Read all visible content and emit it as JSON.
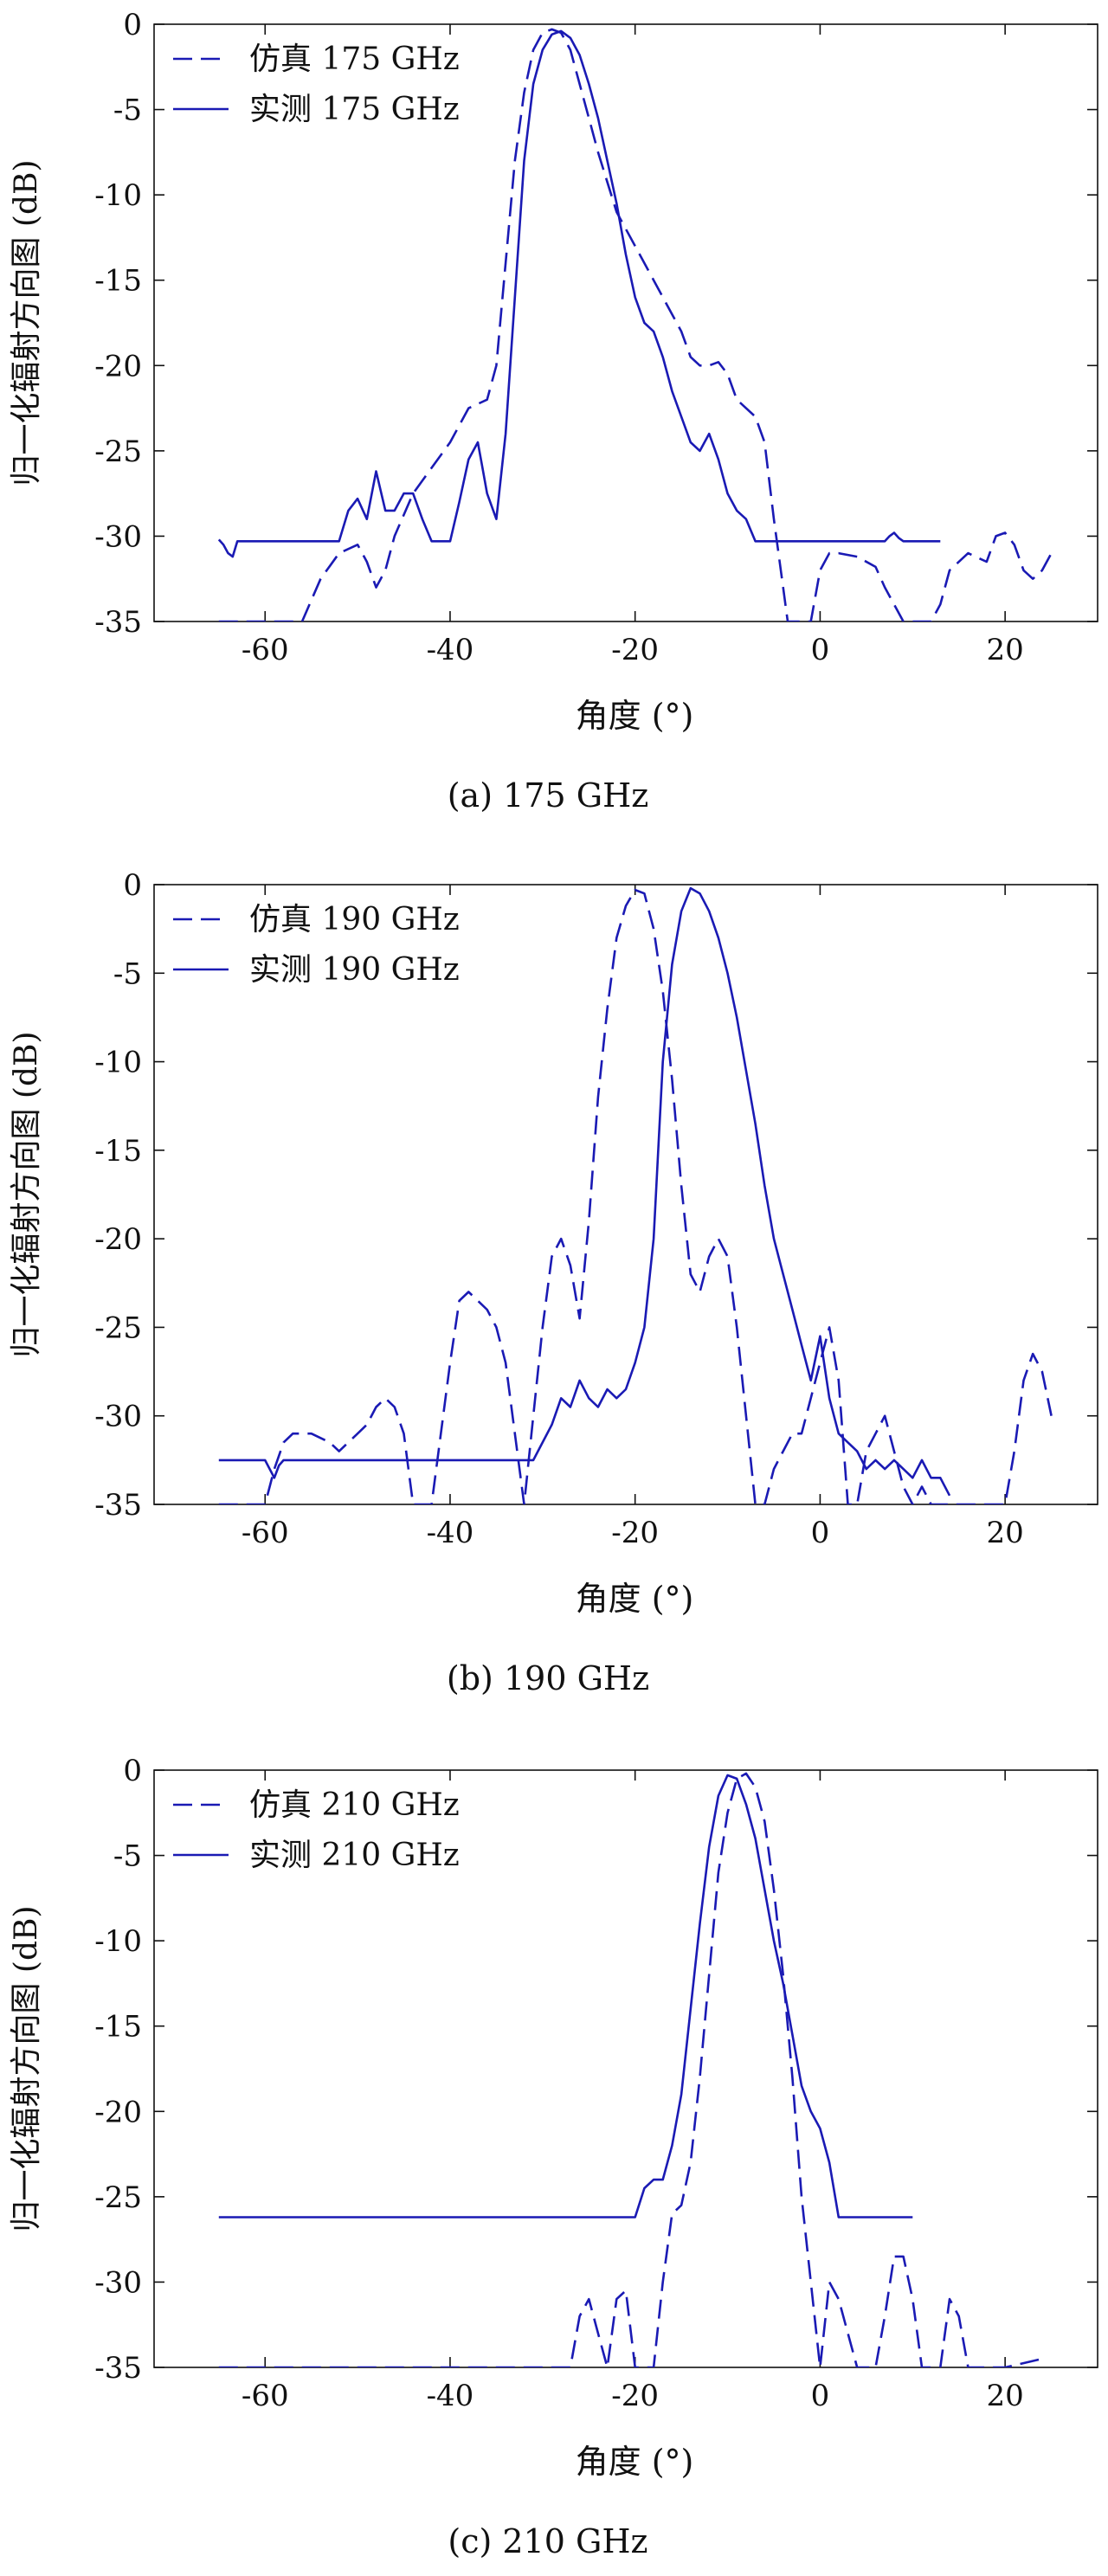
{
  "colors": {
    "line": "#1a1ab4",
    "axis": "#111111"
  },
  "chart_data": [
    {
      "type": "line",
      "caption": "(a) 175 GHz",
      "xlabel": "角度 (°)",
      "ylabel": "归一化辐射方向图 (dB)",
      "xlim": [
        -72,
        30
      ],
      "ylim": [
        -35,
        0
      ],
      "xticks": [
        -60,
        -40,
        -20,
        0,
        20
      ],
      "yticks": [
        0,
        -5,
        -10,
        -15,
        -20,
        -25,
        -30,
        -35
      ],
      "legend_position": "top-left",
      "series": [
        {
          "name": "仿真 175 GHz",
          "style": "dashed",
          "x": [
            -65,
            -56,
            -54,
            -52,
            -50,
            -49,
            -48,
            -47,
            -46,
            -44,
            -40,
            -38,
            -36,
            -35,
            -34,
            -33,
            -32,
            -31,
            -30,
            -29,
            -28,
            -27,
            -26,
            -25,
            -24,
            -22,
            -20,
            -18,
            -16,
            -15,
            -14,
            -13,
            -12,
            -11,
            -10,
            -9,
            -8,
            -7,
            -6,
            -5,
            -4,
            -3.5,
            -3,
            -2,
            -1,
            0,
            1,
            2,
            4,
            6,
            7,
            8,
            9,
            10,
            11,
            12,
            13,
            14,
            16,
            18,
            19,
            20,
            21,
            22,
            23,
            24,
            25
          ],
          "y": [
            -35,
            -35,
            -32.5,
            -31,
            -30.5,
            -31.5,
            -33,
            -32,
            -30,
            -27.5,
            -24.5,
            -22.5,
            -22,
            -20,
            -14,
            -8,
            -4,
            -1.5,
            -0.5,
            -0.3,
            -0.5,
            -1.5,
            -3.5,
            -5.5,
            -7.5,
            -11,
            -13,
            -15,
            -17,
            -18,
            -19.5,
            -20,
            -20,
            -19.8,
            -20.5,
            -22,
            -22.5,
            -23,
            -24.5,
            -29,
            -33,
            -35,
            -35,
            -35,
            -35,
            -32,
            -31,
            -31,
            -31.2,
            -31.8,
            -33,
            -34,
            -35,
            -35,
            -35,
            -35,
            -34,
            -32,
            -31,
            -31.5,
            -30,
            -29.8,
            -30.5,
            -32,
            -32.5,
            -32,
            -31
          ]
        },
        {
          "name": "实测 175 GHz",
          "style": "solid",
          "x": [
            -65,
            -64.5,
            -64,
            -63.5,
            -63,
            -60,
            -55,
            -52,
            -51,
            -50,
            -49,
            -48,
            -47,
            -46,
            -45,
            -44,
            -43,
            -42,
            -41,
            -40,
            -39,
            -38,
            -37,
            -36.5,
            -36,
            -35,
            -34,
            -33,
            -32,
            -31,
            -30,
            -29,
            -28,
            -27,
            -26,
            -25,
            -24,
            -23,
            -22,
            -21,
            -20,
            -19,
            -18,
            -17,
            -16,
            -15,
            -14,
            -13,
            -12,
            -11,
            -10,
            -9,
            -8,
            -7,
            0,
            7,
            7.5,
            8,
            8.5,
            9,
            13
          ],
          "y": [
            -30.2,
            -30.5,
            -31,
            -31.2,
            -30.3,
            -30.3,
            -30.3,
            -30.3,
            -28.5,
            -27.8,
            -29,
            -26.2,
            -28.5,
            -28.5,
            -27.5,
            -27.5,
            -29,
            -30.3,
            -30.3,
            -30.3,
            -28,
            -25.5,
            -24.5,
            -26,
            -27.5,
            -29,
            -24,
            -16,
            -8,
            -3.5,
            -1.5,
            -0.6,
            -0.4,
            -0.8,
            -1.8,
            -3.5,
            -5.5,
            -8,
            -10.5,
            -13.5,
            -16,
            -17.5,
            -18,
            -19.5,
            -21.5,
            -23,
            -24.5,
            -25,
            -24,
            -25.5,
            -27.5,
            -28.5,
            -29,
            -30.3,
            -30.3,
            -30.3,
            -30,
            -29.8,
            -30.1,
            -30.3,
            -30.3
          ]
        }
      ]
    },
    {
      "type": "line",
      "caption": "(b) 190 GHz",
      "xlabel": "角度 (°)",
      "ylabel": "归一化辐射方向图 (dB)",
      "xlim": [
        -72,
        30
      ],
      "ylim": [
        -35,
        0
      ],
      "xticks": [
        -60,
        -40,
        -20,
        0,
        20
      ],
      "yticks": [
        0,
        -5,
        -10,
        -15,
        -20,
        -25,
        -30,
        -35
      ],
      "legend_position": "top-left",
      "series": [
        {
          "name": "仿真 190 GHz",
          "style": "dashed",
          "x": [
            -65,
            -60,
            -59,
            -58,
            -57,
            -55,
            -53,
            -52,
            -50,
            -49,
            -48,
            -47,
            -46,
            -45,
            -44,
            -43,
            -42,
            -41,
            -40,
            -39,
            -38,
            -37,
            -36,
            -35,
            -34,
            -33,
            -32,
            -31,
            -30,
            -29,
            -28,
            -27,
            -26,
            -25,
            -24,
            -23,
            -22,
            -21,
            -20,
            -19,
            -18,
            -17,
            -16,
            -15,
            -14,
            -13,
            -12,
            -11,
            -10,
            -9,
            -8,
            -7,
            -6,
            -5,
            -4,
            -3,
            -2,
            -1,
            0,
            1,
            2,
            3,
            4,
            5,
            6,
            7,
            8,
            9,
            10,
            11,
            12,
            15,
            20,
            21,
            22,
            23,
            24,
            25
          ],
          "y": [
            -35,
            -35,
            -33,
            -31.5,
            -31,
            -31,
            -31.5,
            -32,
            -31,
            -30.5,
            -29.5,
            -29,
            -29.5,
            -31,
            -35,
            -35,
            -35,
            -31,
            -27,
            -23.5,
            -23,
            -23.5,
            -24,
            -25,
            -27,
            -31,
            -35,
            -30,
            -25,
            -21,
            -20,
            -21.5,
            -24.5,
            -19,
            -12,
            -7,
            -3,
            -1.2,
            -0.3,
            -0.5,
            -2.5,
            -6,
            -11,
            -17,
            -22,
            -23,
            -21,
            -20,
            -21,
            -25,
            -30,
            -35,
            -35,
            -33,
            -32,
            -31,
            -31,
            -29,
            -27,
            -25,
            -28,
            -35,
            -35,
            -32,
            -31,
            -30,
            -32,
            -34,
            -35,
            -34,
            -35,
            -35,
            -35,
            -32,
            -28,
            -26.5,
            -27.5,
            -30
          ]
        },
        {
          "name": "实测 190 GHz",
          "style": "solid",
          "x": [
            -65,
            -60,
            -59,
            -58.5,
            -58,
            -55,
            -50,
            -45,
            -40,
            -35,
            -32,
            -31,
            -30,
            -29,
            -28,
            -27,
            -26,
            -25,
            -24,
            -23,
            -22,
            -21,
            -20,
            -19,
            -18,
            -17,
            -16,
            -15,
            -14,
            -13,
            -12,
            -11,
            -10,
            -9,
            -8,
            -7,
            -6,
            -5,
            -4,
            -3,
            -2,
            -1,
            0,
            1,
            2,
            3,
            4,
            5,
            6,
            7,
            8,
            9,
            10,
            11,
            12,
            13,
            14
          ],
          "y": [
            -32.5,
            -32.5,
            -33.5,
            -32.8,
            -32.5,
            -32.5,
            -32.5,
            -32.5,
            -32.5,
            -32.5,
            -32.5,
            -32.5,
            -31.5,
            -30.5,
            -29,
            -29.5,
            -28,
            -29,
            -29.5,
            -28.5,
            -29,
            -28.5,
            -27,
            -25,
            -20,
            -10,
            -4.5,
            -1.5,
            -0.2,
            -0.5,
            -1.5,
            -3,
            -5,
            -7.5,
            -10.5,
            -13.5,
            -17,
            -20,
            -22,
            -24,
            -26,
            -28,
            -25.5,
            -29,
            -31,
            -31.5,
            -32,
            -33,
            -32.5,
            -33,
            -32.5,
            -33,
            -33.5,
            -32.5,
            -33.5,
            -33.5,
            -34.5
          ]
        }
      ]
    },
    {
      "type": "line",
      "caption": "(c) 210 GHz",
      "xlabel": "角度 (°)",
      "ylabel": "归一化辐射方向图 (dB)",
      "xlim": [
        -72,
        30
      ],
      "ylim": [
        -35,
        0
      ],
      "xticks": [
        -60,
        -40,
        -20,
        0,
        20
      ],
      "yticks": [
        0,
        -5,
        -10,
        -15,
        -20,
        -25,
        -30,
        -35
      ],
      "legend_position": "top-left",
      "series": [
        {
          "name": "仿真 210 GHz",
          "style": "dashed",
          "x": [
            -65,
            -27,
            -26,
            -25,
            -24,
            -23,
            -22,
            -21,
            -20,
            -19,
            -18,
            -17,
            -16,
            -15,
            -14,
            -13,
            -12,
            -11,
            -10,
            -9,
            -8,
            -7,
            -6,
            -5,
            -4,
            -3,
            -2,
            -1,
            0,
            1,
            2,
            3,
            4,
            5,
            6,
            7,
            8,
            9,
            10,
            11,
            12,
            13,
            14,
            15,
            16,
            17,
            20,
            24
          ],
          "y": [
            -35,
            -35,
            -32,
            -31,
            -33,
            -35,
            -31,
            -30.5,
            -35,
            -35,
            -35,
            -30,
            -26,
            -25.5,
            -23,
            -18,
            -12,
            -6,
            -2.5,
            -0.5,
            -0.2,
            -1,
            -3,
            -7,
            -12,
            -18,
            -25,
            -30,
            -35,
            -30,
            -31,
            -33,
            -35,
            -35,
            -35,
            -32,
            -28.5,
            -28.5,
            -31,
            -35,
            -35,
            -35,
            -31,
            -32,
            -35,
            -35,
            -35,
            -34.5
          ]
        },
        {
          "name": "实测 210 GHz",
          "style": "solid",
          "x": [
            -65,
            -40,
            -30,
            -20,
            -19,
            -18,
            -17,
            -16,
            -15,
            -14,
            -13,
            -12,
            -11,
            -10,
            -9,
            -8,
            -7,
            -6,
            -5,
            -4,
            -3,
            -2,
            -1,
            0,
            1,
            2,
            5,
            10
          ],
          "y": [
            -26.2,
            -26.2,
            -26.2,
            -26.2,
            -24.5,
            -24,
            -24,
            -22,
            -19,
            -14,
            -9,
            -4.5,
            -1.5,
            -0.3,
            -0.5,
            -2,
            -4,
            -7,
            -10,
            -12.5,
            -15.5,
            -18.5,
            -20,
            -21,
            -23,
            -26.2,
            -26.2,
            -26.2
          ]
        }
      ]
    }
  ]
}
